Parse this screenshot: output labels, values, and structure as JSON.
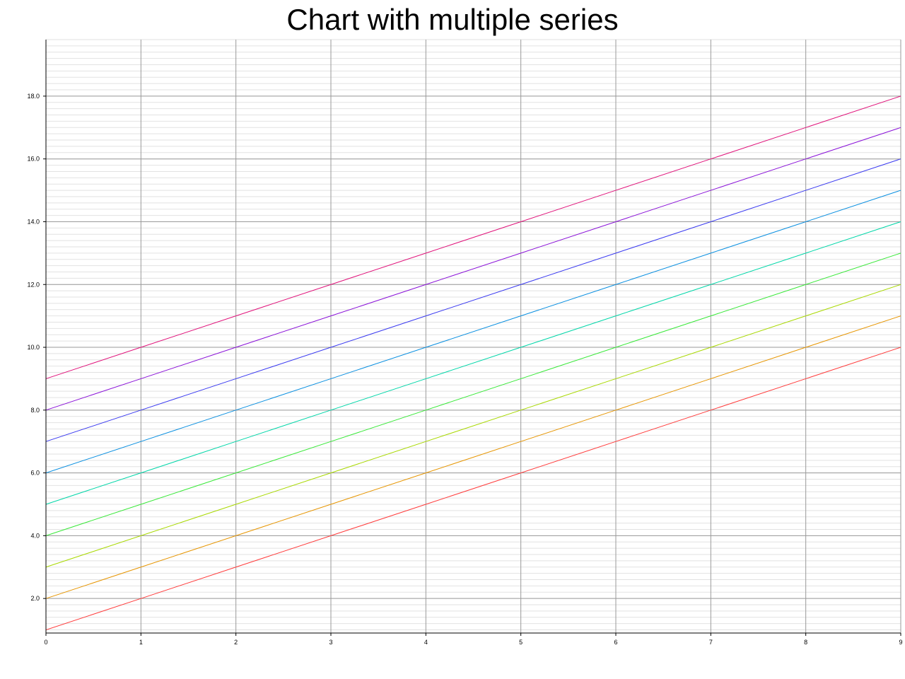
{
  "chart_data": {
    "type": "line",
    "title": "Chart with multiple series",
    "xlabel": "",
    "ylabel": "",
    "xlim": [
      0,
      9
    ],
    "ylim": [
      0.9,
      19.8
    ],
    "grid": true,
    "legend": "none",
    "x": [
      0,
      1,
      2,
      3,
      4,
      5,
      6,
      7,
      8,
      9
    ],
    "x_ticks": [
      "0",
      "1",
      "2",
      "3",
      "4",
      "5",
      "6",
      "7",
      "8",
      "9"
    ],
    "y_ticks": [
      "2.0",
      "4.0",
      "6.0",
      "8.0",
      "10.0",
      "12.0",
      "14.0",
      "16.0",
      "18.0"
    ],
    "series": [
      {
        "color": "#ff3b3b",
        "values": [
          1,
          2,
          3,
          4,
          5,
          6,
          7,
          8,
          9,
          10
        ]
      },
      {
        "color": "#e69500",
        "values": [
          2,
          3,
          4,
          5,
          6,
          7,
          8,
          9,
          10,
          11
        ]
      },
      {
        "color": "#a8d800",
        "values": [
          3,
          4,
          5,
          6,
          7,
          8,
          9,
          10,
          11,
          12
        ]
      },
      {
        "color": "#38e838",
        "values": [
          4,
          5,
          6,
          7,
          8,
          9,
          10,
          11,
          12,
          13
        ]
      },
      {
        "color": "#00d6a8",
        "values": [
          5,
          6,
          7,
          8,
          9,
          10,
          11,
          12,
          13,
          14
        ]
      },
      {
        "color": "#0a8fe0",
        "values": [
          6,
          7,
          8,
          9,
          10,
          11,
          12,
          13,
          14,
          15
        ]
      },
      {
        "color": "#3a3af0",
        "values": [
          7,
          8,
          9,
          10,
          11,
          12,
          13,
          14,
          15,
          16
        ]
      },
      {
        "color": "#8a12d8",
        "values": [
          8,
          9,
          10,
          11,
          12,
          13,
          14,
          15,
          16,
          17
        ]
      },
      {
        "color": "#e0127a",
        "values": [
          9,
          10,
          11,
          12,
          13,
          14,
          15,
          16,
          17,
          18
        ]
      }
    ]
  }
}
